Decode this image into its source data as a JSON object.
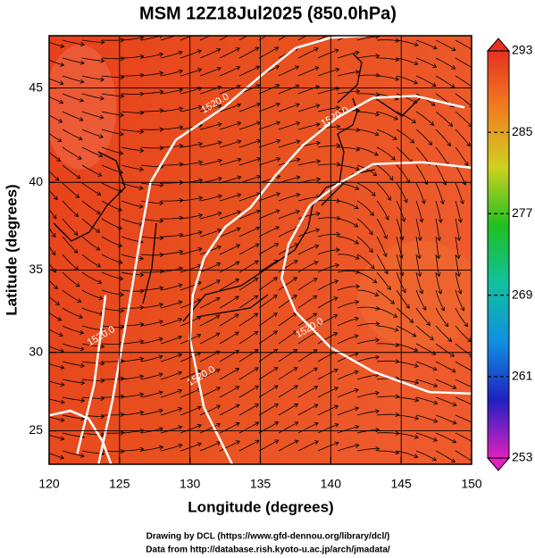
{
  "chart_data": {
    "type": "map",
    "title": "MSM 12Z18Jul2025 (850.0hPa)",
    "xlabel": "Longitude (degrees)",
    "ylabel": "Latitude  (degrees)",
    "projection": "mercator",
    "xlim": [
      120,
      150
    ],
    "ylim": [
      22.8,
      47.6
    ],
    "xticks": [
      120,
      125,
      130,
      135,
      140,
      145,
      150
    ],
    "yticks": [
      25,
      30,
      35,
      40,
      45
    ],
    "grid": true,
    "colorbar": {
      "lim": [
        253,
        293
      ],
      "ticks": [
        253,
        261,
        269,
        277,
        285,
        293
      ],
      "colors": [
        "#e020c0",
        "#2020c0",
        "#1090e0",
        "#10c0a0",
        "#20c020",
        "#d0d020",
        "#f08020",
        "#e83020"
      ]
    },
    "contours": [
      {
        "level": 1520,
        "label": "1520.0",
        "label_at": [
          131.8,
          44.2
        ],
        "lon": [
          123.5,
          124.5,
          125.7,
          126.5,
          127.2,
          129.0,
          132.4,
          135.0,
          137.5,
          140.0,
          142.5
        ],
        "lat": [
          22.8,
          27.0,
          33.0,
          37.0,
          40.0,
          42.3,
          44.0,
          45.6,
          47.0,
          47.5,
          47.6
        ]
      },
      {
        "level": 1520,
        "label": "1520.0",
        "label_at": [
          140.3,
          43.5
        ],
        "lon": [
          133.0,
          131.0,
          130.0,
          130.2,
          131.0,
          132.5,
          134.3,
          136.0,
          138.0,
          140.5,
          143.0,
          146.0,
          149.5
        ],
        "lat": [
          22.8,
          26.5,
          30.8,
          33.5,
          35.7,
          37.5,
          38.6,
          40.3,
          42.0,
          43.5,
          44.5,
          44.6,
          44.0
        ]
      },
      {
        "level": 1520,
        "label": "1520.0",
        "label_at": [
          138.5,
          31.5
        ],
        "lon": [
          150.0,
          147.0,
          143.0,
          140.0,
          137.5,
          136.5,
          137.0,
          138.5,
          140.5,
          143.0,
          146.5,
          150.0
        ],
        "lat": [
          27.4,
          27.5,
          28.8,
          30.3,
          32.5,
          34.5,
          36.5,
          38.7,
          39.9,
          41.0,
          41.1,
          40.8
        ]
      },
      {
        "level": 1520,
        "label": "1520.0",
        "label_at": [
          130.8,
          28.5
        ],
        "lon": [
          120.0,
          121.5,
          122.8,
          123.8,
          124.4
        ],
        "lat": [
          26.0,
          26.3,
          25.8,
          24.3,
          22.8
        ]
      },
      {
        "level": 1520,
        "label": "1520.0",
        "label_at": [
          123.7,
          31.0
        ],
        "lon": [
          122.0,
          123.2,
          124.0
        ],
        "lat": [
          23.5,
          28.0,
          33.5
        ]
      }
    ]
  },
  "footer": [
    "Drawing by DCL (https://www.gfd-dennou.org/library/dcl/)",
    "Data from http://database.rish.kyoto-u.ac.jp/arch/jmadata/"
  ]
}
